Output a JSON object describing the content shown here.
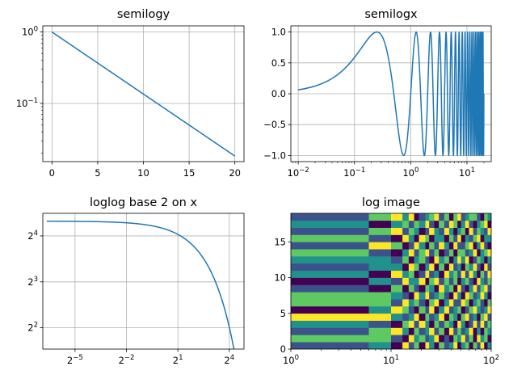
{
  "chart_data": [
    {
      "type": "line",
      "title": "semilogy",
      "yscale": "log",
      "xlim": [
        -1,
        21
      ],
      "ylim": [
        0.0153,
        1.22
      ],
      "grid": true,
      "xticks": [
        {
          "value": 0,
          "label": "0"
        },
        {
          "value": 5,
          "label": "5"
        },
        {
          "value": 10,
          "label": "10"
        },
        {
          "value": 15,
          "label": "15"
        },
        {
          "value": 20,
          "label": "20"
        }
      ],
      "yticks": [
        {
          "value": 1,
          "base": "10",
          "exp": "0"
        },
        {
          "value": 0.1,
          "base": "10",
          "exp": "−1"
        }
      ],
      "series": [
        {
          "x": [
            0,
            20
          ],
          "y": [
            1.0,
            0.0183
          ],
          "color": "#1f77b4"
        }
      ]
    },
    {
      "type": "line",
      "title": "semilogx",
      "xscale": "log",
      "xlim": [
        0.0074,
        27
      ],
      "ylim": [
        -1.1,
        1.1
      ],
      "grid": true,
      "xticks": [
        {
          "value": 0.01,
          "base": "10",
          "exp": "−2"
        },
        {
          "value": 0.1,
          "base": "10",
          "exp": "−1"
        },
        {
          "value": 1,
          "base": "10",
          "exp": "0"
        },
        {
          "value": 10,
          "base": "10",
          "exp": "1"
        }
      ],
      "yticks": [
        {
          "value": 1.0,
          "label": "1.0"
        },
        {
          "value": 0.5,
          "label": "0.5"
        },
        {
          "value": 0.0,
          "label": "0.0"
        },
        {
          "value": -0.5,
          "label": "−0.5"
        },
        {
          "value": -1.0,
          "label": "−1.0"
        }
      ],
      "series": [
        {
          "function": "sin(2*pi*x)",
          "x_range": [
            0.01,
            20
          ],
          "color": "#1f77b4"
        }
      ]
    },
    {
      "type": "line",
      "title": "loglog base 2 on x",
      "xscale": "log2",
      "yscale": "log2",
      "xlim": [
        0.0085,
        29
      ],
      "ylim": [
        2.9,
        22.5
      ],
      "grid": true,
      "xticks": [
        {
          "value": 0.03125,
          "base": "2",
          "exp": "−5"
        },
        {
          "value": 0.25,
          "base": "2",
          "exp": "−2"
        },
        {
          "value": 2,
          "base": "2",
          "exp": "1"
        },
        {
          "value": 16,
          "base": "2",
          "exp": "4"
        }
      ],
      "yticks": [
        {
          "value": 16,
          "base": "2",
          "exp": "4"
        },
        {
          "value": 8,
          "base": "2",
          "exp": "3"
        },
        {
          "value": 4,
          "base": "2",
          "exp": "2"
        }
      ],
      "series": [
        {
          "function": "20*exp(-x/10)",
          "x_range": [
            0.01,
            20
          ],
          "color": "#1f77b4"
        }
      ]
    },
    {
      "type": "heatmap",
      "title": "log image",
      "xscale": "log",
      "xlim": [
        1,
        100
      ],
      "ylim": [
        0,
        19
      ],
      "xticks": [
        {
          "value": 1,
          "base": "10",
          "exp": "0"
        },
        {
          "value": 10,
          "base": "10",
          "exp": "1"
        },
        {
          "value": 100,
          "base": "10",
          "exp": "2"
        }
      ],
      "yticks": [
        {
          "value": 0,
          "label": "0"
        },
        {
          "value": 5,
          "label": "5"
        },
        {
          "value": 10,
          "label": "10"
        },
        {
          "value": 15,
          "label": "15"
        }
      ],
      "x_edges": [
        1,
        6,
        10,
        13,
        15,
        17,
        19,
        22,
        24,
        27,
        30,
        34,
        38,
        42,
        46,
        50,
        55,
        60,
        66,
        72,
        78,
        85,
        92,
        100
      ],
      "rows": 19,
      "colormap": [
        "#440154",
        "#3b528b",
        "#21918c",
        "#5ec962",
        "#fde725"
      ],
      "values": [
        [
          0.26,
          0.55,
          0.1,
          0.82,
          0.38,
          0.66,
          0.14,
          0.9,
          0.47,
          0.03,
          0.71,
          0.29,
          0.58,
          0.95,
          0.19,
          0.42,
          0.77,
          0.08,
          0.63,
          0.35,
          0.86,
          0.12,
          0.51
        ],
        [
          0.75,
          0.6,
          0.33,
          0.05,
          0.91,
          0.44,
          0.68,
          0.22,
          0.57,
          0.8,
          0.15,
          0.39,
          0.02,
          0.73,
          0.5,
          0.96,
          0.27,
          0.61,
          0.09,
          0.84,
          0.4,
          0.7,
          0.18
        ],
        [
          0.3,
          0.72,
          0.88,
          0.41,
          0.13,
          0.79,
          0.25,
          0.54,
          0.97,
          0.36,
          0.62,
          0.07,
          0.85,
          0.2,
          0.67,
          0.31,
          0.48,
          0.92,
          0.16,
          0.59,
          0.04,
          0.78,
          0.45
        ],
        [
          0.52,
          0.35,
          0.06,
          0.69,
          0.84,
          0.21,
          0.93,
          0.4,
          0.11,
          0.65,
          0.28,
          0.76,
          0.49,
          0.03,
          0.87,
          0.58,
          0.14,
          0.37,
          0.81,
          0.24,
          0.95,
          0.32,
          0.66
        ],
        [
          0.8,
          0.88,
          0.47,
          0.23,
          0.58,
          0.97,
          0.09,
          0.71,
          0.34,
          0.52,
          0.89,
          0.16,
          0.63,
          0.42,
          0.05,
          0.74,
          0.91,
          0.26,
          0.55,
          0.12,
          0.68,
          0.83,
          0.39
        ],
        [
          0.15,
          0.44,
          0.94,
          0.62,
          0.28,
          0.11,
          0.76,
          0.37,
          0.83,
          0.19,
          0.46,
          0.99,
          0.24,
          0.57,
          0.7,
          0.08,
          0.35,
          0.64,
          0.92,
          0.43,
          0.21,
          0.53,
          0.87
        ],
        [
          0.6,
          0.76,
          0.2,
          0.85,
          0.49,
          0.67,
          0.31,
          0.05,
          0.72,
          0.94,
          0.13,
          0.58,
          0.81,
          0.36,
          0.27,
          0.9,
          0.61,
          0.02,
          0.46,
          0.78,
          0.33,
          0.15,
          0.71
        ],
        [
          0.7,
          0.67,
          0.52,
          0.37,
          0.01,
          0.86,
          0.54,
          0.96,
          0.22,
          0.41,
          0.75,
          0.3,
          0.07,
          0.89,
          0.48,
          0.17,
          0.82,
          0.69,
          0.24,
          0.56,
          0.91,
          0.44,
          0.1
        ],
        [
          0.25,
          0.14,
          0.71,
          0.09,
          0.77,
          0.32,
          0.18,
          0.63,
          0.51,
          0.07,
          0.98,
          0.46,
          0.69,
          0.14,
          0.92,
          0.39,
          0.05,
          0.57,
          0.8,
          0.27,
          0.62,
          0.97,
          0.34
        ],
        [
          0.02,
          0.5,
          0.27,
          0.98,
          0.43,
          0.55,
          0.88,
          0.12,
          0.66,
          0.83,
          0.36,
          0.61,
          0.2,
          0.78,
          0.03,
          0.53,
          0.74,
          0.31,
          0.13,
          0.9,
          0.47,
          0.25,
          0.68
        ],
        [
          0.55,
          0.03,
          0.9,
          0.45,
          0.66,
          0.02,
          0.39,
          0.81,
          0.28,
          0.57,
          0.19,
          0.87,
          0.42,
          0.66,
          0.31,
          0.96,
          0.22,
          0.84,
          0.59,
          0.06,
          0.73,
          0.38,
          0.92
        ],
        [
          0.35,
          0.4,
          0.59,
          0.18,
          0.93,
          0.71,
          0.06,
          0.48,
          0.85,
          0.15,
          0.63,
          0.04,
          0.94,
          0.29,
          0.55,
          0.13,
          0.68,
          0.47,
          0.97,
          0.35,
          0.18,
          0.81,
          0.26
        ],
        [
          0.45,
          0.58,
          0.38,
          0.74,
          0.14,
          0.4,
          0.79,
          0.24,
          0.02,
          0.91,
          0.48,
          0.7,
          0.16,
          0.51,
          0.86,
          0.41,
          0.93,
          0.09,
          0.3,
          0.72,
          0.57,
          0.05,
          0.49
        ],
        [
          0.68,
          0.26,
          0.12,
          0.55,
          0.81,
          0.25,
          0.61,
          0.99,
          0.37,
          0.69,
          0.08,
          0.33,
          0.77,
          0.05,
          0.63,
          0.79,
          0.28,
          0.54,
          0.88,
          0.19,
          0.4,
          0.66,
          0.82
        ],
        [
          0.25,
          0.82,
          0.61,
          0.03,
          0.36,
          0.92,
          0.45,
          0.15,
          0.73,
          0.26,
          0.84,
          0.52,
          0.11,
          0.95,
          0.23,
          0.34,
          0.6,
          0.98,
          0.15,
          0.5,
          0.84,
          0.27,
          0.07
        ],
        [
          0.6,
          0.33,
          0.06,
          0.92,
          0.52,
          0.18,
          0.84,
          0.65,
          0.09,
          0.58,
          0.41,
          0.17,
          0.67,
          0.38,
          0.89,
          0.08,
          0.46,
          0.21,
          0.76,
          0.95,
          0.11,
          0.59,
          0.44
        ],
        [
          0.38,
          0.7,
          0.85,
          0.29,
          0.67,
          0.49,
          0.02,
          0.36,
          0.95,
          0.44,
          0.22,
          0.9,
          0.55,
          0.19,
          0.48,
          0.7,
          0.02,
          0.86,
          0.33,
          0.64,
          0.49,
          0.3,
          0.91
        ],
        [
          0.48,
          0.18,
          0.46,
          0.63,
          0.21,
          0.78,
          0.58,
          0.87,
          0.32,
          0.12,
          0.75,
          0.28,
          0.86,
          0.62,
          0.1,
          0.57,
          0.91,
          0.37,
          0.07,
          0.42,
          0.78,
          0.95,
          0.16
        ],
        [
          0.28,
          0.61,
          0.96,
          0.42,
          0.89,
          0.1,
          0.29,
          0.53,
          0.64,
          0.8,
          0.35,
          0.64,
          0.03,
          0.73,
          0.96,
          0.26,
          0.51,
          0.72,
          0.6,
          0.23,
          0.05,
          0.62,
          0.55
        ]
      ]
    }
  ]
}
